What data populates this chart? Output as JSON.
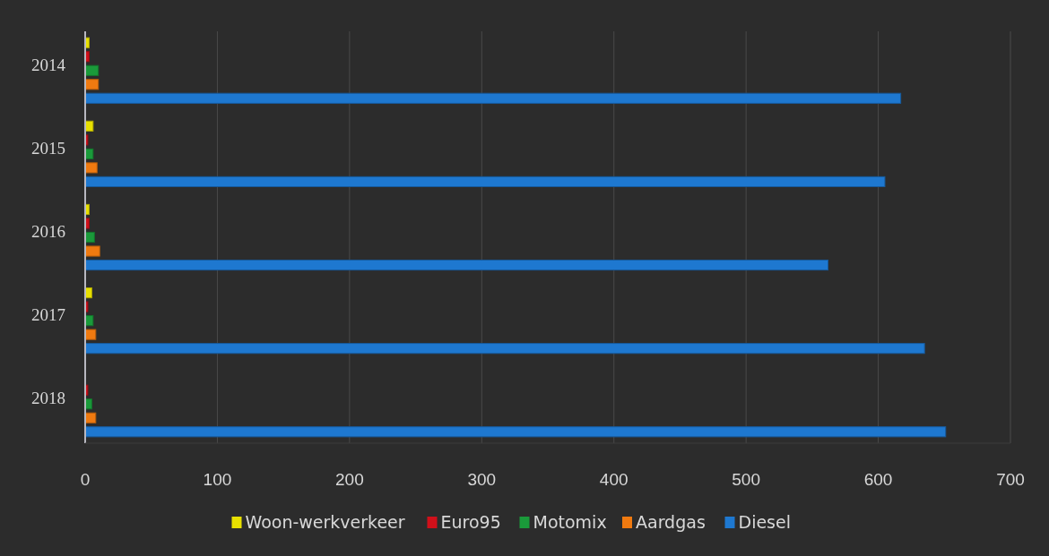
{
  "chart_data": {
    "type": "bar",
    "orientation": "horizontal",
    "categories": [
      "2014",
      "2015",
      "2016",
      "2017",
      "2018"
    ],
    "series": [
      {
        "name": "Woon-werkverkeer",
        "color": "#e8e000",
        "values": [
          3,
          6,
          3,
          5,
          0
        ]
      },
      {
        "name": "Euro95",
        "color": "#d0101a",
        "values": [
          3,
          2,
          3,
          2,
          2
        ]
      },
      {
        "name": "Motomix",
        "color": "#1a9a3a",
        "values": [
          10,
          6,
          7,
          6,
          5
        ]
      },
      {
        "name": "Aardgas",
        "color": "#f07a10",
        "values": [
          10,
          9,
          11,
          8,
          8
        ]
      },
      {
        "name": "Diesel",
        "color": "#1e78d0",
        "values": [
          617,
          605,
          562,
          635,
          651
        ]
      }
    ],
    "xlim": [
      0,
      700
    ],
    "xticks": [
      0,
      100,
      200,
      300,
      400,
      500,
      600,
      700
    ],
    "grid": "x",
    "legend": "bottom"
  }
}
